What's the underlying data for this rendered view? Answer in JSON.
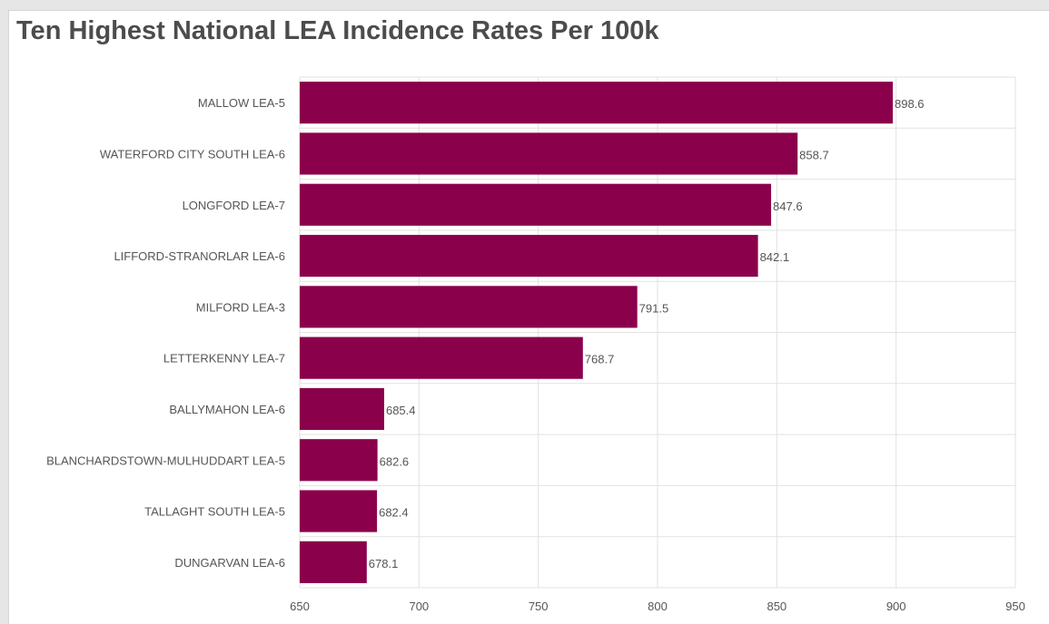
{
  "title": "Ten Highest National LEA Incidence Rates Per 100k",
  "colors": {
    "bar": "#8b004b",
    "grid": "#e2e2e2",
    "text": "#555555",
    "title": "#4c4c4c"
  },
  "chart_data": {
    "type": "bar",
    "orientation": "horizontal",
    "title": "Ten Highest National LEA Incidence Rates Per 100k",
    "xlabel": "",
    "ylabel": "",
    "categories": [
      "MALLOW LEA-5",
      "WATERFORD CITY SOUTH LEA-6",
      "LONGFORD LEA-7",
      "LIFFORD-STRANORLAR LEA-6",
      "MILFORD LEA-3",
      "LETTERKENNY LEA-7",
      "BALLYMAHON LEA-6",
      "BLANCHARDSTOWN-MULHUDDART LEA-5",
      "TALLAGHT SOUTH LEA-5",
      "DUNGARVAN LEA-6"
    ],
    "values": [
      898.6,
      858.7,
      847.6,
      842.1,
      791.5,
      768.7,
      685.4,
      682.6,
      682.4,
      678.1
    ],
    "value_labels": [
      "898.6",
      "858.7",
      "847.6",
      "842.1",
      "791.5",
      "768.7",
      "685.4",
      "682.6",
      "682.4",
      "678.1"
    ],
    "xlim": [
      650,
      950
    ],
    "xticks": [
      650,
      700,
      750,
      800,
      850,
      900,
      950
    ],
    "xtick_labels": [
      "650",
      "700",
      "750",
      "800",
      "850",
      "900",
      "950"
    ],
    "grid": true,
    "legend": "none"
  }
}
